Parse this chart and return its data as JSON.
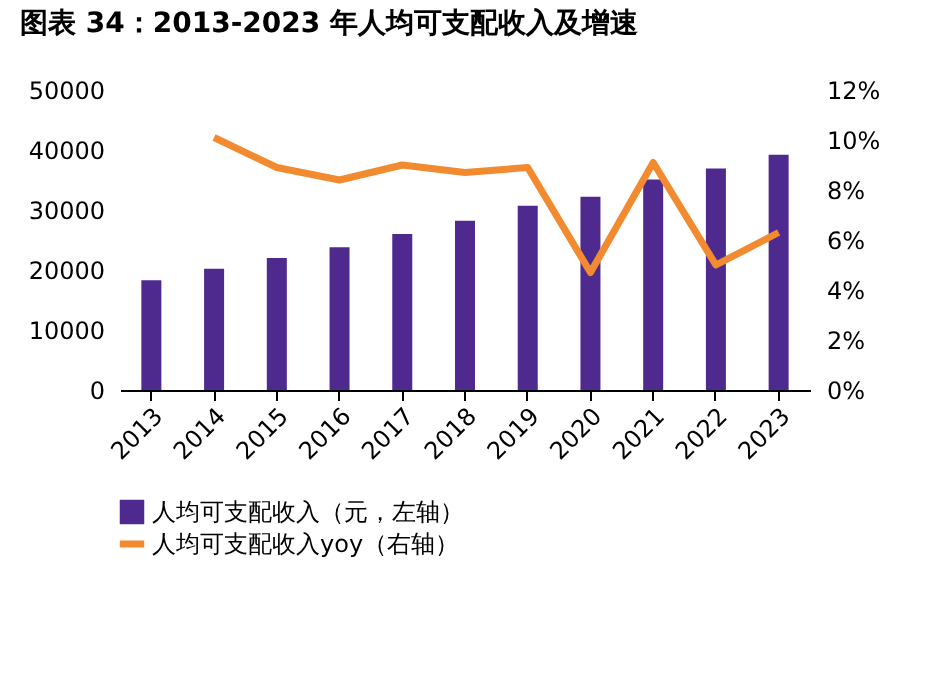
{
  "chart_data": {
    "type": "bar",
    "title": "图表 34：2013-2023 年人均可支配收入及增速",
    "categories": [
      "2013",
      "2014",
      "2015",
      "2016",
      "2017",
      "2018",
      "2019",
      "2020",
      "2021",
      "2022",
      "2023"
    ],
    "series": [
      {
        "name": "人均可支配收入（元，左轴）",
        "color": "#4e2a8e",
        "values": [
          18300,
          20200,
          22000,
          23800,
          26000,
          28200,
          30700,
          32200,
          35100,
          36900,
          39200
        ]
      },
      {
        "name": "人均可支配收入yoy（右轴）",
        "type": "line",
        "axis": "y2",
        "color": "#f28a30",
        "values": [
          null,
          10.1,
          8.9,
          8.4,
          9.0,
          8.7,
          8.9,
          4.7,
          9.1,
          5.0,
          6.3
        ]
      }
    ],
    "ylim": [
      0,
      50000
    ],
    "yticks": [
      0,
      10000,
      20000,
      30000,
      40000,
      50000
    ],
    "y2lim": [
      0,
      12
    ],
    "y2ticks": [
      {
        "value": 0,
        "label": "0%"
      },
      {
        "value": 2,
        "label": "2%"
      },
      {
        "value": 4,
        "label": "4%"
      },
      {
        "value": 6,
        "label": "6%"
      },
      {
        "value": 8,
        "label": "8%"
      },
      {
        "value": 10,
        "label": "10%"
      },
      {
        "value": 12,
        "label": "12%"
      }
    ],
    "grid": false,
    "legend": "bottom"
  }
}
